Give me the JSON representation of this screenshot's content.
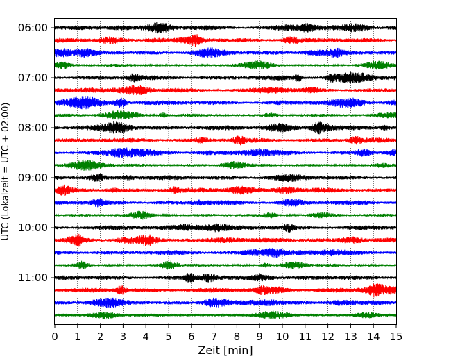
{
  "chart_data": {
    "type": "line",
    "title": "",
    "xlabel": "Zeit  [min]",
    "ylabel": "UTC (Lokalzeit = UTC + 02:00)",
    "xlim": [
      0,
      15
    ],
    "x_ticks": [
      0,
      1,
      2,
      3,
      4,
      5,
      6,
      7,
      8,
      9,
      10,
      11,
      12,
      13,
      14,
      15
    ],
    "y_tick_labels": [
      "06:00",
      "07:00",
      "08:00",
      "09:00",
      "10:00",
      "11:00"
    ],
    "grid": "vertical dotted at each minute",
    "trace_interval_minutes": 15,
    "series": [
      {
        "start": "06:00",
        "color": "#000000"
      },
      {
        "start": "06:15",
        "color": "#ff0000"
      },
      {
        "start": "06:30",
        "color": "#0000ff"
      },
      {
        "start": "06:45",
        "color": "#008000"
      },
      {
        "start": "07:00",
        "color": "#000000"
      },
      {
        "start": "07:15",
        "color": "#ff0000"
      },
      {
        "start": "07:30",
        "color": "#0000ff"
      },
      {
        "start": "07:45",
        "color": "#008000"
      },
      {
        "start": "08:00",
        "color": "#000000"
      },
      {
        "start": "08:15",
        "color": "#ff0000"
      },
      {
        "start": "08:30",
        "color": "#0000ff"
      },
      {
        "start": "08:45",
        "color": "#008000"
      },
      {
        "start": "09:00",
        "color": "#000000"
      },
      {
        "start": "09:15",
        "color": "#ff0000"
      },
      {
        "start": "09:30",
        "color": "#0000ff"
      },
      {
        "start": "09:45",
        "color": "#008000"
      },
      {
        "start": "10:00",
        "color": "#000000"
      },
      {
        "start": "10:15",
        "color": "#ff0000"
      },
      {
        "start": "10:30",
        "color": "#0000ff"
      },
      {
        "start": "10:45",
        "color": "#008000"
      },
      {
        "start": "11:00",
        "color": "#000000"
      },
      {
        "start": "11:15",
        "color": "#ff0000"
      },
      {
        "start": "11:30",
        "color": "#0000ff"
      },
      {
        "start": "11:45",
        "color": "#008000"
      }
    ]
  }
}
